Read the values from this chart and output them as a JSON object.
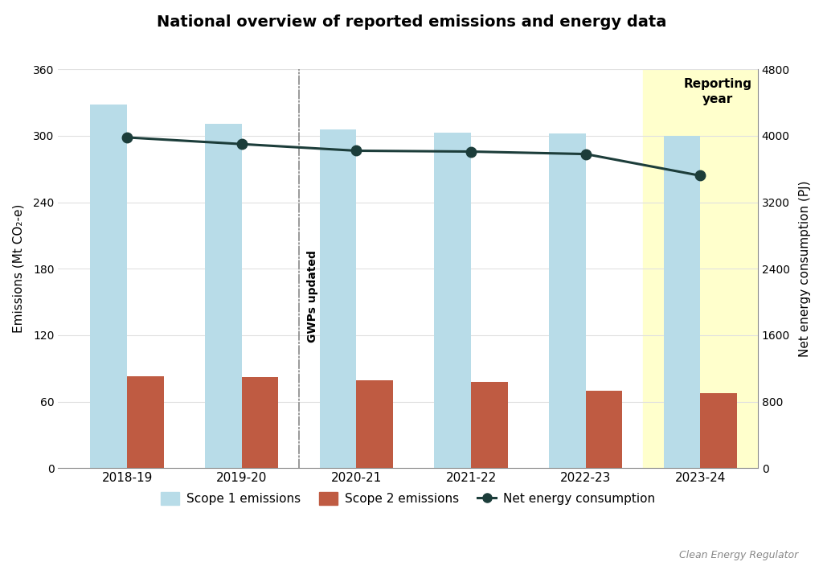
{
  "title": "National overview of reported emissions and energy data",
  "categories": [
    "2018-19",
    "2019-20",
    "2020-21",
    "2021-22",
    "2022-23",
    "2023-24"
  ],
  "scope1_emissions": [
    328,
    311,
    306,
    303,
    302,
    300
  ],
  "scope2_emissions": [
    83,
    82,
    79,
    78,
    70,
    68
  ],
  "net_energy": [
    3980,
    3900,
    3820,
    3810,
    3780,
    3520
  ],
  "scope1_color": "#b8dce8",
  "scope2_color": "#bf5b42",
  "energy_color": "#1c3d3a",
  "background_color": "#ffffff",
  "highlight_color": "#ffffcc",
  "ylim_left": [
    0,
    360
  ],
  "ylim_right": [
    0,
    4800
  ],
  "yticks_left": [
    0,
    60,
    120,
    180,
    240,
    300,
    360
  ],
  "yticks_right": [
    0,
    800,
    1600,
    2400,
    3200,
    4000,
    4800
  ],
  "ylabel_left": "Emissions (Mt CO₂-e)",
  "ylabel_right": "Net energy consumption (PJ)",
  "gwp_label": "GWPs updated",
  "reporting_year_label": "Reporting\nyear",
  "legend_labels": [
    "Scope 1 emissions",
    "Scope 2 emissions",
    "Net energy consumption"
  ],
  "watermark": "Clean Energy Regulator",
  "bar_width": 0.32
}
